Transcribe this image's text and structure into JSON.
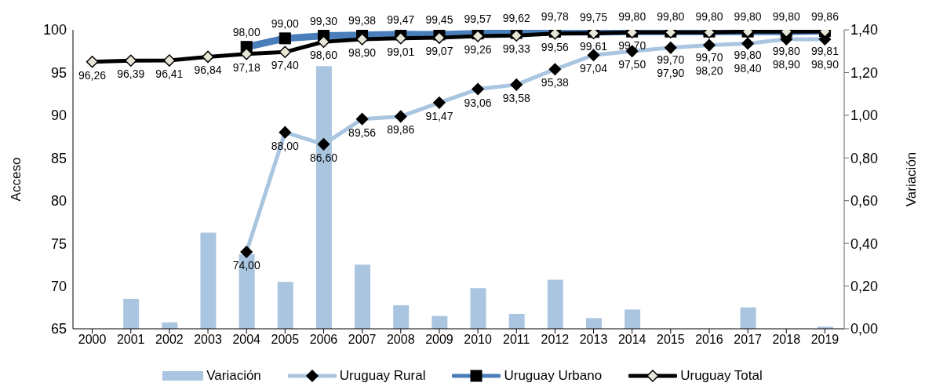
{
  "chart_data": {
    "type": "line",
    "xlabel": null,
    "ylabel": "Acceso",
    "y2label": "Variación",
    "categories": [
      "2000",
      "2001",
      "2002",
      "2003",
      "2004",
      "2005",
      "2006",
      "2007",
      "2008",
      "2009",
      "2010",
      "2011",
      "2012",
      "2013",
      "2014",
      "2015",
      "2016",
      "2017",
      "2018",
      "2019"
    ],
    "ylim": [
      65,
      100
    ],
    "yticks": [
      65,
      70,
      75,
      80,
      85,
      90,
      95,
      100
    ],
    "y2lim": [
      0,
      1.4
    ],
    "y2ticks": [
      {
        "value": 0,
        "label": "0,00"
      },
      {
        "value": 0.2,
        "label": "0,20"
      },
      {
        "value": 0.4,
        "label": "0,40"
      },
      {
        "value": 0.6,
        "label": "0,60"
      },
      {
        "value": 0.8,
        "label": "0,80"
      },
      {
        "value": 1,
        "label": "1,00"
      },
      {
        "value": 1.2,
        "label": "1,20"
      },
      {
        "value": 1.4,
        "label": "1,40"
      }
    ],
    "grid": false,
    "legend": "bottom",
    "line_style": "solid",
    "series": [
      {
        "name": "Variación",
        "type": "bar",
        "axis": "y2",
        "color": "#a9c5e0",
        "values": [
          0,
          0.14,
          0.03,
          0.45,
          0.35,
          0.22,
          1.23,
          0.3,
          0.11,
          0.06,
          0.19,
          0.07,
          0.23,
          0.05,
          0.09,
          0,
          0,
          0.1,
          0,
          0.01
        ]
      },
      {
        "name": "Uruguay Rural",
        "marker": "diamond",
        "color": "#a9c5e0",
        "values": [
          null,
          null,
          null,
          null,
          74,
          88,
          86.6,
          89.56,
          89.86,
          91.47,
          93.06,
          93.58,
          95.38,
          97.04,
          97.5,
          97.9,
          98.2,
          98.4,
          98.9,
          98.9
        ],
        "value_labels": [
          null,
          null,
          null,
          null,
          "74,00",
          "88,00",
          "86,60",
          "89,56",
          "89,86",
          "91,47",
          "93,06",
          "93,58",
          "95,38",
          "97,04",
          "97,50",
          "97,90",
          "98,20",
          "98,40",
          "98,90",
          "98,90"
        ]
      },
      {
        "name": "Uruguay Urbano",
        "marker": "square",
        "color": "#4a7ebb",
        "values": [
          null,
          null,
          null,
          null,
          98,
          99,
          99.3,
          99.38,
          99.47,
          99.45,
          99.57,
          99.62,
          99.78,
          99.75,
          99.8,
          99.8,
          99.8,
          99.8,
          99.8,
          99.86
        ],
        "value_labels": [
          null,
          null,
          null,
          null,
          "98,00",
          "99,00",
          "99,30",
          "99,38",
          "99,47",
          "99,45",
          "99,57",
          "99,62",
          "99,78",
          "99,75",
          "99,80",
          "99,80",
          "99,80",
          "99,80",
          "99,80",
          "99,86"
        ]
      },
      {
        "name": "Uruguay Total",
        "marker": "diamond",
        "color": "#000000",
        "values": [
          96.26,
          96.39,
          96.41,
          96.84,
          97.18,
          97.4,
          98.6,
          98.9,
          99.01,
          99.07,
          99.26,
          99.33,
          99.56,
          99.61,
          99.7,
          99.7,
          99.7,
          99.8,
          99.8,
          99.81
        ],
        "value_labels": [
          "96,26",
          "96,39",
          "96,41",
          "96,84",
          "97,18",
          "97,40",
          "98,60",
          "98,90",
          "99,01",
          "99,07",
          "99,26",
          "99,33",
          "99,56",
          "99,61",
          "99,70",
          "99,70",
          "99,70",
          "99,80",
          "99,80",
          "99,81"
        ]
      }
    ]
  }
}
